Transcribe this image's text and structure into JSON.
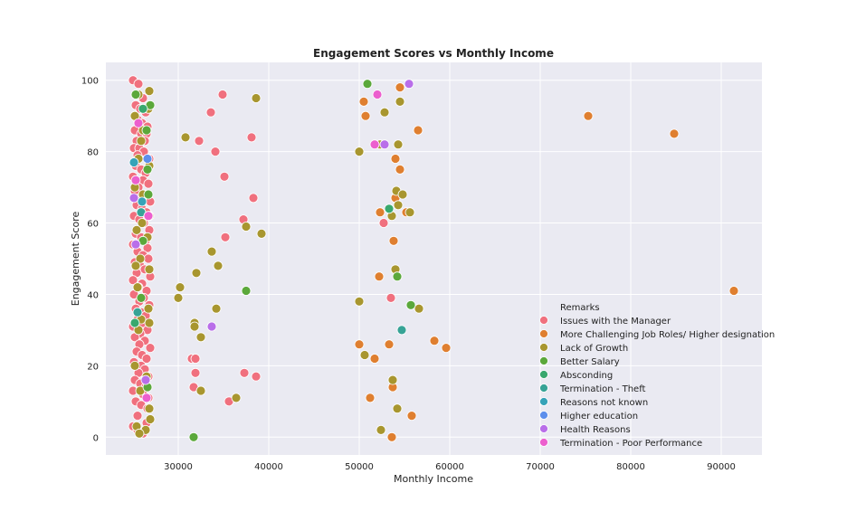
{
  "chart_data": {
    "type": "scatter",
    "title": "Engagement Scores vs Monthly Income",
    "xlabel": "Monthly Income",
    "ylabel": "Engagement Score",
    "xlim": [
      22000,
      94500
    ],
    "ylim": [
      -5,
      105
    ],
    "xticks": [
      30000,
      40000,
      50000,
      60000,
      70000,
      80000,
      90000
    ],
    "yticks": [
      0,
      20,
      40,
      60,
      80,
      100
    ],
    "grid": true,
    "legend": {
      "title": "Remarks",
      "placement": "lower-right"
    },
    "series": [
      {
        "name": "Issues with the Manager",
        "color": "#f0707e",
        "points": [
          [
            25000,
            100
          ],
          [
            25600,
            99
          ],
          [
            26100,
            95
          ],
          [
            25300,
            93
          ],
          [
            25800,
            92
          ],
          [
            26400,
            91
          ],
          [
            25500,
            89
          ],
          [
            26000,
            88
          ],
          [
            26600,
            87
          ],
          [
            25200,
            86
          ],
          [
            25900,
            85
          ],
          [
            26500,
            85
          ],
          [
            25400,
            83
          ],
          [
            26300,
            83
          ],
          [
            25100,
            81
          ],
          [
            25700,
            81
          ],
          [
            26200,
            80
          ],
          [
            25500,
            79
          ],
          [
            26800,
            78
          ],
          [
            25300,
            76
          ],
          [
            25900,
            75
          ],
          [
            26400,
            74
          ],
          [
            25000,
            73
          ],
          [
            26100,
            72
          ],
          [
            26700,
            71
          ],
          [
            25600,
            70
          ],
          [
            25200,
            69
          ],
          [
            26300,
            68
          ],
          [
            25800,
            67
          ],
          [
            26900,
            66
          ],
          [
            25400,
            65
          ],
          [
            26000,
            64
          ],
          [
            26500,
            63
          ],
          [
            25100,
            62
          ],
          [
            25700,
            61
          ],
          [
            26200,
            60
          ],
          [
            26800,
            58
          ],
          [
            25300,
            57
          ],
          [
            25900,
            56
          ],
          [
            26400,
            55
          ],
          [
            25000,
            54
          ],
          [
            26600,
            53
          ],
          [
            25500,
            52
          ],
          [
            26100,
            51
          ],
          [
            26700,
            50
          ],
          [
            25200,
            49
          ],
          [
            25800,
            48
          ],
          [
            26300,
            47
          ],
          [
            25400,
            46
          ],
          [
            26900,
            45
          ],
          [
            25000,
            44
          ],
          [
            26000,
            43
          ],
          [
            25600,
            42
          ],
          [
            26500,
            41
          ],
          [
            25100,
            40
          ],
          [
            26200,
            39
          ],
          [
            25700,
            38
          ],
          [
            26800,
            37
          ],
          [
            25300,
            36
          ],
          [
            25900,
            35
          ],
          [
            26400,
            34
          ],
          [
            25500,
            33
          ],
          [
            26100,
            32
          ],
          [
            25000,
            31
          ],
          [
            26600,
            30
          ],
          [
            25800,
            29
          ],
          [
            25200,
            28
          ],
          [
            26300,
            27
          ],
          [
            25700,
            26
          ],
          [
            26900,
            25
          ],
          [
            25400,
            24
          ],
          [
            26000,
            23
          ],
          [
            26500,
            22
          ],
          [
            25100,
            21
          ],
          [
            25900,
            20
          ],
          [
            26300,
            19
          ],
          [
            25600,
            18
          ],
          [
            26700,
            17
          ],
          [
            25200,
            16
          ],
          [
            25800,
            15
          ],
          [
            26400,
            14
          ],
          [
            25000,
            13
          ],
          [
            26100,
            12
          ],
          [
            26700,
            11
          ],
          [
            25300,
            10
          ],
          [
            25900,
            9
          ],
          [
            26600,
            8
          ],
          [
            25500,
            6
          ],
          [
            25000,
            3
          ],
          [
            25500,
            2
          ],
          [
            26100,
            1
          ],
          [
            26500,
            4
          ],
          [
            34900,
            96
          ],
          [
            33600,
            91
          ],
          [
            32300,
            83
          ],
          [
            38100,
            84
          ],
          [
            34100,
            80
          ],
          [
            35100,
            73
          ],
          [
            38300,
            67
          ],
          [
            37200,
            61
          ],
          [
            35200,
            56
          ],
          [
            31500,
            22
          ],
          [
            31900,
            22
          ],
          [
            31900,
            18
          ],
          [
            31700,
            14
          ],
          [
            35600,
            10
          ],
          [
            37300,
            18
          ],
          [
            38600,
            17
          ],
          [
            53500,
            39
          ],
          [
            52700,
            60
          ]
        ]
      },
      {
        "name": "More Challenging Job Roles/ Higher designation",
        "color": "#df7f30",
        "points": [
          [
            54500,
            98
          ],
          [
            50500,
            94
          ],
          [
            50700,
            90
          ],
          [
            75300,
            90
          ],
          [
            56500,
            86
          ],
          [
            84800,
            85
          ],
          [
            54000,
            78
          ],
          [
            54500,
            75
          ],
          [
            54000,
            67
          ],
          [
            55200,
            63
          ],
          [
            52300,
            63
          ],
          [
            53800,
            55
          ],
          [
            52200,
            45
          ],
          [
            91400,
            41
          ],
          [
            58300,
            27
          ],
          [
            53300,
            26
          ],
          [
            50000,
            26
          ],
          [
            59600,
            25
          ],
          [
            51700,
            22
          ],
          [
            53700,
            14
          ],
          [
            51200,
            11
          ],
          [
            55800,
            6
          ],
          [
            53600,
            0
          ]
        ]
      },
      {
        "name": "Lack of Growth",
        "color": "#a8962f",
        "points": [
          [
            38600,
            95
          ],
          [
            54500,
            94
          ],
          [
            52800,
            91
          ],
          [
            30800,
            84
          ],
          [
            52300,
            82
          ],
          [
            54300,
            82
          ],
          [
            50000,
            80
          ],
          [
            54100,
            69
          ],
          [
            54800,
            68
          ],
          [
            54300,
            65
          ],
          [
            53600,
            62
          ],
          [
            55600,
            63
          ],
          [
            37500,
            59
          ],
          [
            39200,
            57
          ],
          [
            33700,
            52
          ],
          [
            34400,
            48
          ],
          [
            32000,
            46
          ],
          [
            54000,
            47
          ],
          [
            30200,
            42
          ],
          [
            30000,
            39
          ],
          [
            50000,
            38
          ],
          [
            34200,
            36
          ],
          [
            56600,
            36
          ],
          [
            31800,
            32
          ],
          [
            31800,
            31
          ],
          [
            32500,
            28
          ],
          [
            50600,
            23
          ],
          [
            53700,
            16
          ],
          [
            32500,
            13
          ],
          [
            36400,
            11
          ],
          [
            54200,
            8
          ],
          [
            52400,
            2
          ],
          [
            26800,
            97
          ],
          [
            25600,
            96
          ],
          [
            26700,
            92
          ],
          [
            25200,
            90
          ],
          [
            26100,
            86
          ],
          [
            25900,
            83
          ],
          [
            25600,
            78
          ],
          [
            26800,
            76
          ],
          [
            25200,
            70
          ],
          [
            26100,
            68
          ],
          [
            26800,
            62
          ],
          [
            26000,
            60
          ],
          [
            25400,
            58
          ],
          [
            26600,
            56
          ],
          [
            25800,
            50
          ],
          [
            25300,
            48
          ],
          [
            26800,
            47
          ],
          [
            25500,
            42
          ],
          [
            26700,
            36
          ],
          [
            25900,
            33
          ],
          [
            26800,
            32
          ],
          [
            25600,
            30
          ],
          [
            25200,
            20
          ],
          [
            26500,
            17
          ],
          [
            25800,
            13
          ],
          [
            26800,
            8
          ],
          [
            26900,
            5
          ],
          [
            25400,
            3
          ],
          [
            26400,
            2
          ],
          [
            25700,
            1
          ]
        ]
      },
      {
        "name": "Better Salary",
        "color": "#5ba83b",
        "points": [
          [
            50900,
            99
          ],
          [
            54200,
            45
          ],
          [
            55700,
            37
          ],
          [
            37500,
            41
          ],
          [
            31700,
            0
          ],
          [
            26900,
            93
          ],
          [
            25300,
            96
          ],
          [
            26500,
            86
          ],
          [
            26600,
            75
          ],
          [
            26700,
            68
          ],
          [
            26100,
            55
          ],
          [
            25900,
            39
          ],
          [
            26600,
            14
          ]
        ]
      },
      {
        "name": "Absconding",
        "color": "#39a86e",
        "points": [
          [
            53300,
            64
          ],
          [
            25200,
            32
          ],
          [
            26100,
            92
          ]
        ]
      },
      {
        "name": "Termination - Theft",
        "color": "#37a396",
        "points": [
          [
            54700,
            30
          ],
          [
            25900,
            63
          ],
          [
            25500,
            35
          ]
        ]
      },
      {
        "name": "Reasons not known",
        "color": "#36a3b8",
        "points": [
          [
            25100,
            77
          ],
          [
            26000,
            66
          ]
        ]
      },
      {
        "name": "Higher education",
        "color": "#5d8fec",
        "points": [
          [
            26600,
            78
          ]
        ]
      },
      {
        "name": "Health Reasons",
        "color": "#b96ee9",
        "points": [
          [
            55500,
            99
          ],
          [
            52800,
            82
          ],
          [
            33700,
            31
          ],
          [
            25100,
            67
          ],
          [
            25300,
            54
          ],
          [
            26400,
            16
          ]
        ]
      },
      {
        "name": "Termination - Poor Performance",
        "color": "#ec5fce",
        "points": [
          [
            52000,
            96
          ],
          [
            51700,
            82
          ],
          [
            25600,
            88
          ],
          [
            26700,
            62
          ],
          [
            25300,
            72
          ],
          [
            26500,
            11
          ]
        ]
      }
    ]
  }
}
